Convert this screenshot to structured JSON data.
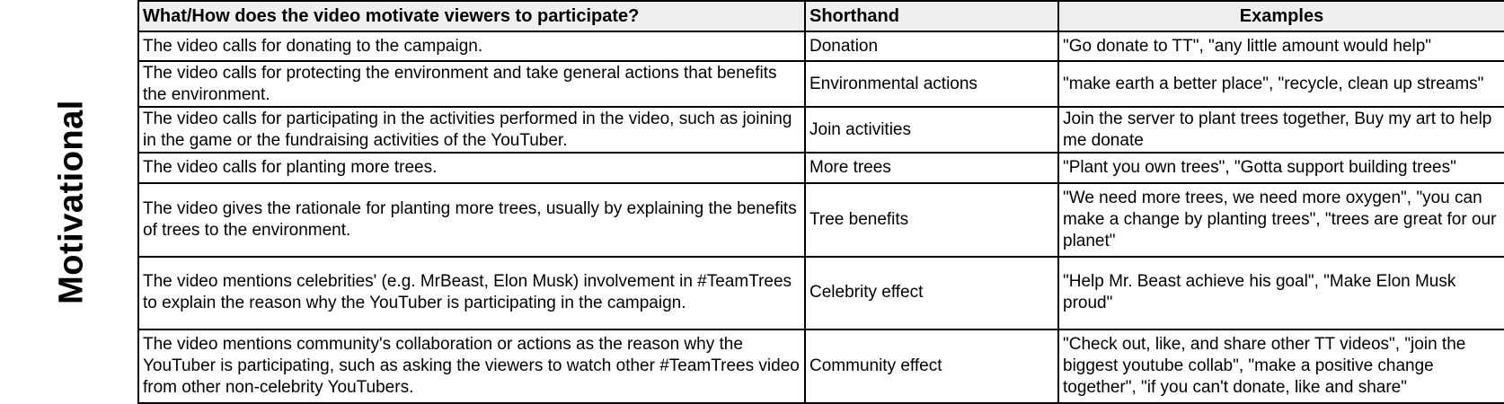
{
  "side_label": "Motivational",
  "headers": {
    "question": "What/How does the video motivate viewers to participate?",
    "shorthand": "Shorthand",
    "examples": "Examples"
  },
  "rows": [
    {
      "description": "The video calls for donating to the campaign.",
      "shorthand": "Donation",
      "examples": "\"Go donate to TT\", \"any little amount would help\""
    },
    {
      "description": "The video calls for protecting the environment and take general actions that benefits the environment.",
      "shorthand": "Environmental actions",
      "examples": "\"make earth a better place\", \"recycle, clean up streams\""
    },
    {
      "description": "The video calls for participating in the activities performed in the video, such as joining in the game or the fundraising activities of the YouTuber.",
      "shorthand": "Join activities",
      "examples": "Join the server to plant trees together, Buy my art to help me donate"
    },
    {
      "description": "The video calls for planting more trees.",
      "shorthand": "More trees",
      "examples": "\"Plant you own trees\", \"Gotta support building trees\""
    },
    {
      "description": "The video gives the rationale for planting more trees, usually by explaining the benefits of trees to the environment.",
      "shorthand": "Tree benefits",
      "examples": "\"We need more trees, we need more oxygen\", \"you can make a change by planting trees\", \"trees are great for our planet\""
    },
    {
      "description": "The video mentions celebrities' (e.g. MrBeast, Elon Musk) involvement in #TeamTrees to explain the reason why the YouTuber is participating in the campaign.",
      "shorthand": "Celebrity effect",
      "examples": "\"Help Mr. Beast achieve his goal\", \"Make Elon Musk proud\""
    },
    {
      "description": "The video mentions community's collaboration or actions as the reason why the YouTuber is participating, such as asking the viewers to watch other #TeamTrees video from other non-celebrity YouTubers.",
      "shorthand": "Community effect",
      "examples": "\"Check out, like, and share other TT videos\", \"join the biggest youtube collab\", \"make a positive change together\", \"if you can't donate, like and share\""
    }
  ]
}
